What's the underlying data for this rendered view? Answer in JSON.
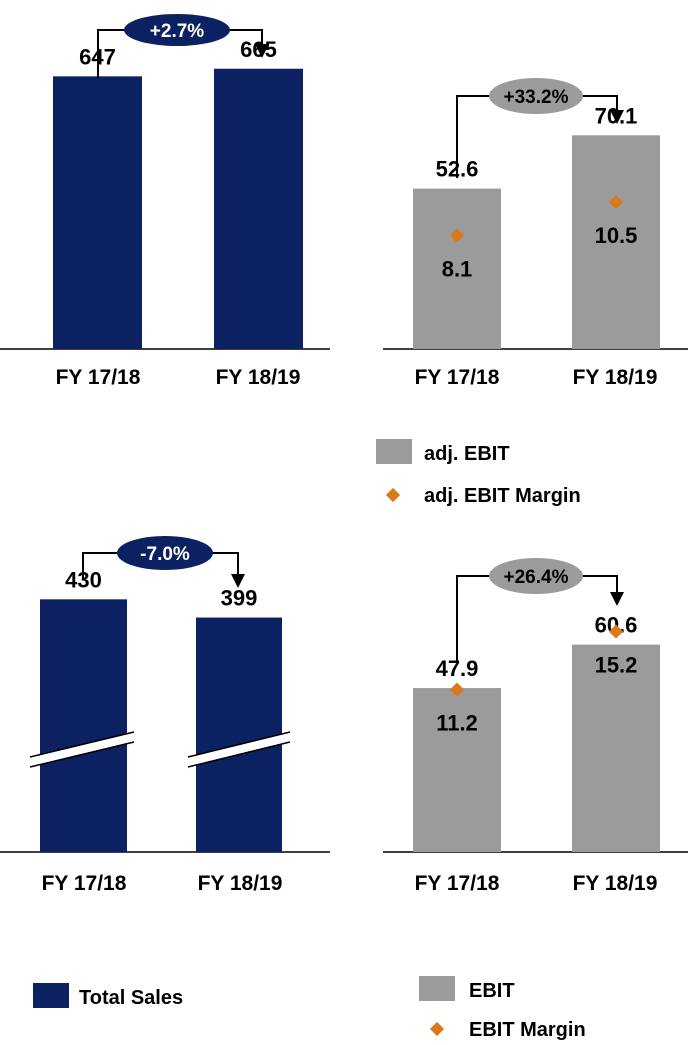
{
  "colors": {
    "sales_bar": "#0b2161",
    "ebit_bar": "#9b9b9b",
    "margin_marker": "#d97a1a",
    "pill_dark": "#0b2161",
    "pill_grey": "#9b9b9b",
    "axis": "#000000"
  },
  "chart_data": [
    {
      "id": "sales-top",
      "type": "bar",
      "categories": [
        "FY 17/18",
        "FY 18/19"
      ],
      "values": [
        647,
        665
      ],
      "value_labels": [
        "647",
        "665"
      ],
      "change_label": "+2.7%",
      "ylim": [
        0,
        700
      ]
    },
    {
      "id": "adj-ebit",
      "type": "bar",
      "categories": [
        "FY 17/18",
        "FY 18/19"
      ],
      "values": [
        52.6,
        70.1
      ],
      "value_labels": [
        "52.6",
        "70.1"
      ],
      "margin_values": [
        8.1,
        10.5
      ],
      "margin_labels": [
        "8.1",
        "10.5"
      ],
      "change_label": "+33.2%",
      "ylim": [
        0,
        82
      ],
      "margin_ylim": [
        0,
        20
      ]
    },
    {
      "id": "sales-bottom",
      "type": "bar",
      "categories": [
        "FY 17/18",
        "FY 18/19"
      ],
      "values": [
        430,
        399
      ],
      "value_labels": [
        "430",
        "399"
      ],
      "change_label": "-7.0%",
      "axis_break": true,
      "ylim": [
        0,
        468
      ]
    },
    {
      "id": "ebit",
      "type": "bar",
      "categories": [
        "FY 17/18",
        "FY 18/19"
      ],
      "values": [
        47.9,
        60.6
      ],
      "value_labels": [
        "47.9",
        "60.6"
      ],
      "margin_values": [
        11.2,
        15.2
      ],
      "margin_labels": [
        "11.2",
        "15.2"
      ],
      "change_label": "+26.4%",
      "ylim": [
        0,
        71
      ],
      "margin_ylim": [
        0,
        20
      ]
    }
  ],
  "legends": {
    "adj_ebit": {
      "bar_label": "adj. EBIT",
      "marker_label": "adj. EBIT Margin"
    },
    "total_sales": {
      "bar_label": "Total Sales"
    },
    "ebit": {
      "bar_label": "EBIT",
      "marker_label": "EBIT Margin"
    }
  }
}
